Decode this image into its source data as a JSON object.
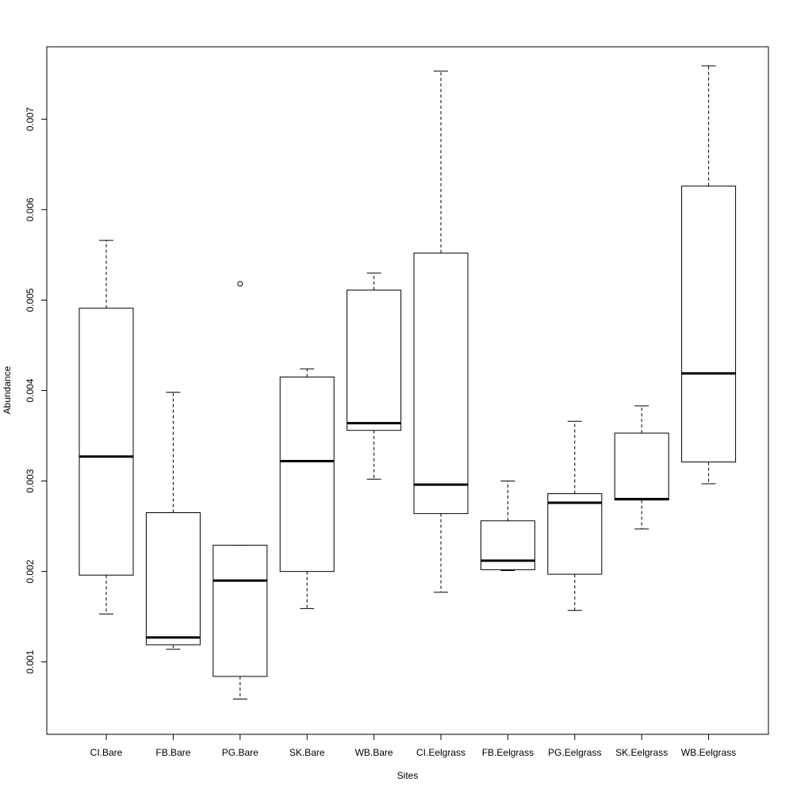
{
  "chart_data": {
    "type": "boxplot",
    "title": "",
    "xlabel": "Sites",
    "ylabel": "Abundance",
    "ylim": [
      0.0002,
      0.0078
    ],
    "yticks": [
      0.001,
      0.002,
      0.003,
      0.004,
      0.005,
      0.006,
      0.007
    ],
    "ytick_labels": [
      "0.001",
      "0.002",
      "0.003",
      "0.004",
      "0.005",
      "0.006",
      "0.007"
    ],
    "grid": false,
    "categories": [
      "CI.Bare",
      "FB.Bare",
      "PG.Bare",
      "SK.Bare",
      "WB.Bare",
      "CI.Eelgrass",
      "FB.Eelgrass",
      "PG.Eelgrass",
      "SK.Eelgrass",
      "WB.Eelgrass"
    ],
    "boxes": [
      {
        "min": 0.00153,
        "q1": 0.00196,
        "median": 0.00327,
        "q3": 0.00491,
        "max": 0.00566,
        "outliers": []
      },
      {
        "min": 0.00114,
        "q1": 0.00119,
        "median": 0.00127,
        "q3": 0.00265,
        "max": 0.00398,
        "outliers": []
      },
      {
        "min": 0.00059,
        "q1": 0.00084,
        "median": 0.0019,
        "q3": 0.00229,
        "max": 0.00229,
        "outliers": [
          0.00518
        ]
      },
      {
        "min": 0.00159,
        "q1": 0.002,
        "median": 0.00322,
        "q3": 0.00415,
        "max": 0.00424,
        "outliers": []
      },
      {
        "min": 0.00302,
        "q1": 0.00356,
        "median": 0.00364,
        "q3": 0.00511,
        "max": 0.0053,
        "outliers": []
      },
      {
        "min": 0.00177,
        "q1": 0.00264,
        "median": 0.00296,
        "q3": 0.00552,
        "max": 0.00753,
        "outliers": []
      },
      {
        "min": 0.00201,
        "q1": 0.00202,
        "median": 0.00212,
        "q3": 0.00256,
        "max": 0.003,
        "outliers": []
      },
      {
        "min": 0.00157,
        "q1": 0.00197,
        "median": 0.00276,
        "q3": 0.00286,
        "max": 0.00366,
        "outliers": []
      },
      {
        "min": 0.00247,
        "q1": 0.00279,
        "median": 0.0028,
        "q3": 0.00353,
        "max": 0.00383,
        "outliers": []
      },
      {
        "min": 0.00297,
        "q1": 0.00321,
        "median": 0.00419,
        "q3": 0.00626,
        "max": 0.00759,
        "outliers": []
      }
    ]
  }
}
